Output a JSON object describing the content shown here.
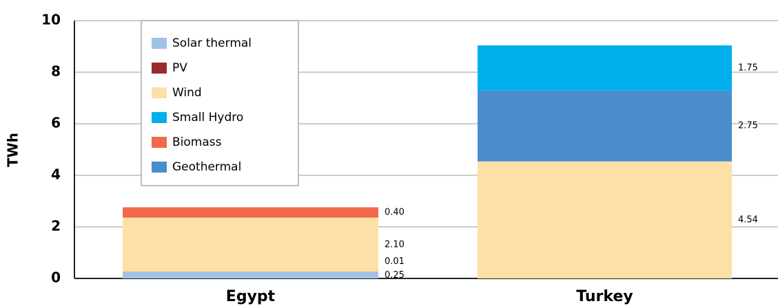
{
  "chart_data": {
    "type": "stacked_bar",
    "y_label": "TWh",
    "categories": [
      "Egypt",
      "Turkey"
    ],
    "series": [
      {
        "name": "Solar thermal",
        "color": "#9dc3e6",
        "values": [
          0.25,
          null
        ],
        "value_labels": [
          "0.25",
          null
        ]
      },
      {
        "name": "PV",
        "color": "#9b2a2f",
        "values": [
          0.01,
          null
        ],
        "value_labels": [
          "0.01",
          null
        ]
      },
      {
        "name": "Wind",
        "color": "#fde0a6",
        "values": [
          2.1,
          4.54
        ],
        "value_labels": [
          "2.10",
          "4.54"
        ]
      },
      {
        "name": "Small Hydro",
        "color": "#00b0ec",
        "values": [
          null,
          1.75
        ],
        "value_labels": [
          null,
          "1.75"
        ]
      },
      {
        "name": "Biomass",
        "color": "#f0694a",
        "values": [
          0.4,
          null
        ],
        "value_labels": [
          "0.40",
          null
        ]
      },
      {
        "name": "Geothermal",
        "color": "#4a8dcc",
        "values": [
          null,
          2.75
        ],
        "value_labels": [
          null,
          "2.75"
        ]
      }
    ],
    "ylim": [
      0,
      10
    ],
    "yticks": [
      0,
      2,
      4,
      6,
      8,
      10
    ],
    "grid": true,
    "legend": "upper left"
  }
}
